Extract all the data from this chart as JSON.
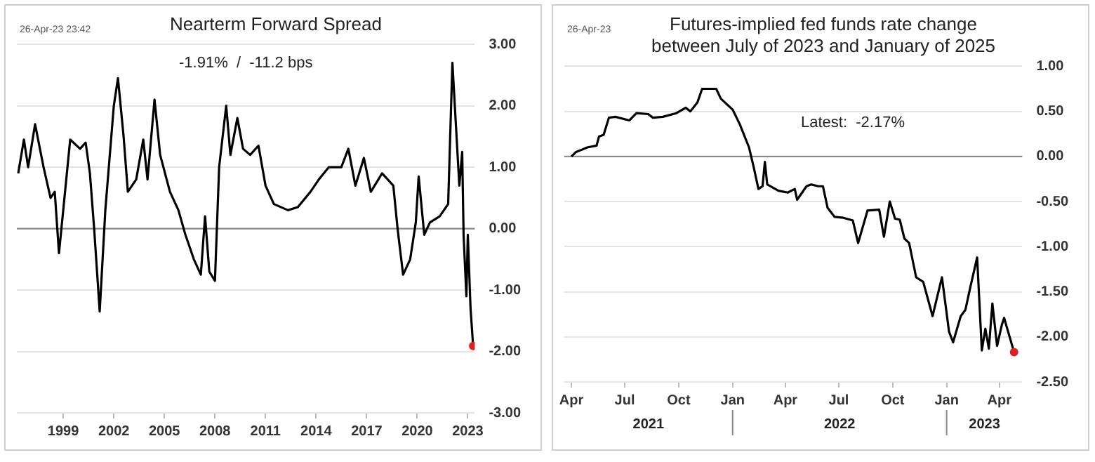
{
  "chart_data": [
    {
      "type": "line",
      "title": "Nearterm Forward Spread",
      "annotations": [
        "26-Apr-23 23:42",
        "-1.91%  /  -11.2 bps"
      ],
      "xlim": [
        "1996-04",
        "2023-06"
      ],
      "xticks": [
        "1999",
        "2002",
        "2005",
        "2008",
        "2011",
        "2014",
        "2017",
        "2020",
        "2023"
      ],
      "ylim": [
        -3,
        3
      ],
      "yticks": [
        {
          "value": 3,
          "label": "3.00"
        },
        {
          "value": 2,
          "label": "2.00"
        },
        {
          "value": 1,
          "label": "1.00"
        },
        {
          "value": 0,
          "label": "0.00"
        },
        {
          "value": -1,
          "label": "-1.00"
        },
        {
          "value": -2,
          "label": "-2.00"
        },
        {
          "value": -3,
          "label": "-3.00"
        }
      ],
      "grid": "y",
      "marker": "none",
      "ref_lines": [
        {
          "axis": "y",
          "value": 0,
          "color": "#8c8c8c"
        }
      ],
      "series": [
        {
          "color": "#000000",
          "x": [
            "1996-05",
            "1996-09",
            "1996-12",
            "1997-05",
            "1997-11",
            "1998-04",
            "1998-07",
            "1998-10",
            "1999-01",
            "1999-06",
            "2000-01",
            "2000-05",
            "2000-08",
            "2000-11",
            "2001-03",
            "2001-07",
            "2002-01",
            "2002-04",
            "2002-08",
            "2002-11",
            "2003-05",
            "2003-10",
            "2004-01",
            "2004-06",
            "2004-10",
            "2005-05",
            "2005-11",
            "2006-04",
            "2006-10",
            "2007-03",
            "2007-06",
            "2007-09",
            "2008-01",
            "2008-04",
            "2008-09",
            "2008-12",
            "2009-05",
            "2009-09",
            "2010-02",
            "2010-08",
            "2011-01",
            "2011-07",
            "2012-05",
            "2012-12",
            "2013-09",
            "2014-03",
            "2014-10",
            "2015-07",
            "2015-12",
            "2016-05",
            "2016-11",
            "2017-04",
            "2017-12",
            "2018-08",
            "2018-11",
            "2019-03",
            "2019-08",
            "2019-12",
            "2020-02",
            "2020-06",
            "2020-10",
            "2021-05",
            "2021-11",
            "2022-02",
            "2022-07",
            "2022-09",
            "2022-10",
            "2022-12",
            "2023-01",
            "2023-03",
            "2023-04-26"
          ],
          "values": [
            0.9,
            1.45,
            1.0,
            1.7,
            1.0,
            0.5,
            0.6,
            -0.4,
            0.3,
            1.45,
            1.3,
            1.4,
            0.9,
            0.0,
            -1.35,
            0.3,
            2.0,
            2.45,
            1.5,
            0.6,
            0.8,
            1.45,
            0.8,
            2.1,
            1.2,
            0.6,
            0.3,
            -0.1,
            -0.5,
            -0.75,
            0.2,
            -0.7,
            -0.85,
            1.0,
            2.0,
            1.2,
            1.8,
            1.3,
            1.2,
            1.35,
            0.7,
            0.4,
            0.3,
            0.35,
            0.6,
            0.8,
            1.0,
            1.0,
            1.3,
            0.7,
            1.15,
            0.6,
            0.9,
            0.7,
            0.0,
            -0.75,
            -0.5,
            0.1,
            0.85,
            -0.1,
            0.1,
            0.2,
            0.4,
            2.7,
            0.7,
            1.25,
            -0.1,
            -1.1,
            -0.1,
            -1.3,
            -1.91
          ]
        },
        {
          "type": "scatter",
          "marker": "circle",
          "color": "#e02020",
          "x": [
            "2023-04-26"
          ],
          "values": [
            -1.91
          ]
        }
      ]
    },
    {
      "type": "line",
      "title": "Futures-implied fed funds rate change between July of 2023 and January of 2025",
      "annotations": [
        "26-Apr-23",
        "Latest:  -2.17%",
        "2021",
        "2022",
        "2023"
      ],
      "xlim": [
        "2021-03-20",
        "2023-05-10"
      ],
      "xticks": [
        {
          "value": "2021-04",
          "label": "Apr"
        },
        {
          "value": "2021-07",
          "label": "Jul"
        },
        {
          "value": "2021-10",
          "label": "Oct"
        },
        {
          "value": "2022-01",
          "label": "Jan"
        },
        {
          "value": "2022-04",
          "label": "Apr"
        },
        {
          "value": "2022-07",
          "label": "Jul"
        },
        {
          "value": "2022-10",
          "label": "Oct"
        },
        {
          "value": "2023-01",
          "label": "Jan"
        },
        {
          "value": "2023-04",
          "label": "Apr"
        }
      ],
      "ylim": [
        -2.5,
        1
      ],
      "yticks": [
        {
          "value": 1,
          "label": "1.00"
        },
        {
          "value": 0.5,
          "label": "0.50"
        },
        {
          "value": 0,
          "label": "0.00"
        },
        {
          "value": -0.5,
          "label": "-0.50"
        },
        {
          "value": -1,
          "label": "-1.00"
        },
        {
          "value": -1.5,
          "label": "-1.50"
        },
        {
          "value": -2,
          "label": "-2.00"
        },
        {
          "value": -2.5,
          "label": "-2.50"
        }
      ],
      "grid": "y",
      "marker": "none",
      "ref_lines": [
        {
          "axis": "y",
          "value": 0,
          "color": "#8c8c8c"
        }
      ],
      "series": [
        {
          "color": "#000000",
          "x": [
            "2021-04-01",
            "2021-04-09",
            "2021-04-17",
            "2021-04-28",
            "2021-05-14",
            "2021-05-18",
            "2021-05-26",
            "2021-06-04",
            "2021-06-15",
            "2021-07-09",
            "2021-07-21",
            "2021-08-10",
            "2021-08-18",
            "2021-09-04",
            "2021-09-27",
            "2021-10-13",
            "2021-10-21",
            "2021-11-02",
            "2021-11-10",
            "2021-12-04",
            "2021-12-12",
            "2022-01-01",
            "2022-01-13",
            "2022-01-29",
            "2022-02-06",
            "2022-02-14",
            "2022-02-21",
            "2022-02-25",
            "2022-03-01",
            "2022-03-20",
            "2022-04-05",
            "2022-04-17",
            "2022-04-21",
            "2022-05-07",
            "2022-05-15",
            "2022-05-27",
            "2022-06-04",
            "2022-06-12",
            "2022-06-24",
            "2022-07-09",
            "2022-07-25",
            "2022-08-03",
            "2022-08-19",
            "2022-09-08",
            "2022-09-16",
            "2022-09-26",
            "2022-10-05",
            "2022-10-13",
            "2022-10-21",
            "2022-10-29",
            "2022-11-10",
            "2022-11-22",
            "2022-12-08",
            "2022-12-24",
            "2023-01-05",
            "2023-01-12",
            "2023-01-25",
            "2023-02-02",
            "2023-02-10",
            "2023-02-22",
            "2023-03-02",
            "2023-03-08",
            "2023-03-14",
            "2023-03-20",
            "2023-03-28",
            "2023-04-05",
            "2023-04-09",
            "2023-04-26"
          ],
          "values": [
            0.0,
            0.05,
            0.07,
            0.1,
            0.12,
            0.22,
            0.24,
            0.43,
            0.44,
            0.4,
            0.48,
            0.47,
            0.43,
            0.44,
            0.48,
            0.54,
            0.5,
            0.6,
            0.75,
            0.75,
            0.64,
            0.52,
            0.36,
            0.1,
            -0.12,
            -0.36,
            -0.33,
            -0.06,
            -0.31,
            -0.38,
            -0.4,
            -0.36,
            -0.48,
            -0.33,
            -0.31,
            -0.33,
            -0.33,
            -0.57,
            -0.67,
            -0.68,
            -0.71,
            -0.96,
            -0.6,
            -0.59,
            -0.89,
            -0.5,
            -0.69,
            -0.7,
            -0.91,
            -0.96,
            -1.34,
            -1.39,
            -1.77,
            -1.34,
            -1.94,
            -2.06,
            -1.77,
            -1.7,
            -1.46,
            -1.12,
            -2.15,
            -1.91,
            -2.13,
            -1.63,
            -2.1,
            -1.87,
            -1.79,
            -2.17
          ]
        },
        {
          "type": "scatter",
          "marker": "circle",
          "color": "#e02020",
          "x": [
            "2023-04-26"
          ],
          "values": [
            -2.17
          ]
        }
      ]
    }
  ]
}
